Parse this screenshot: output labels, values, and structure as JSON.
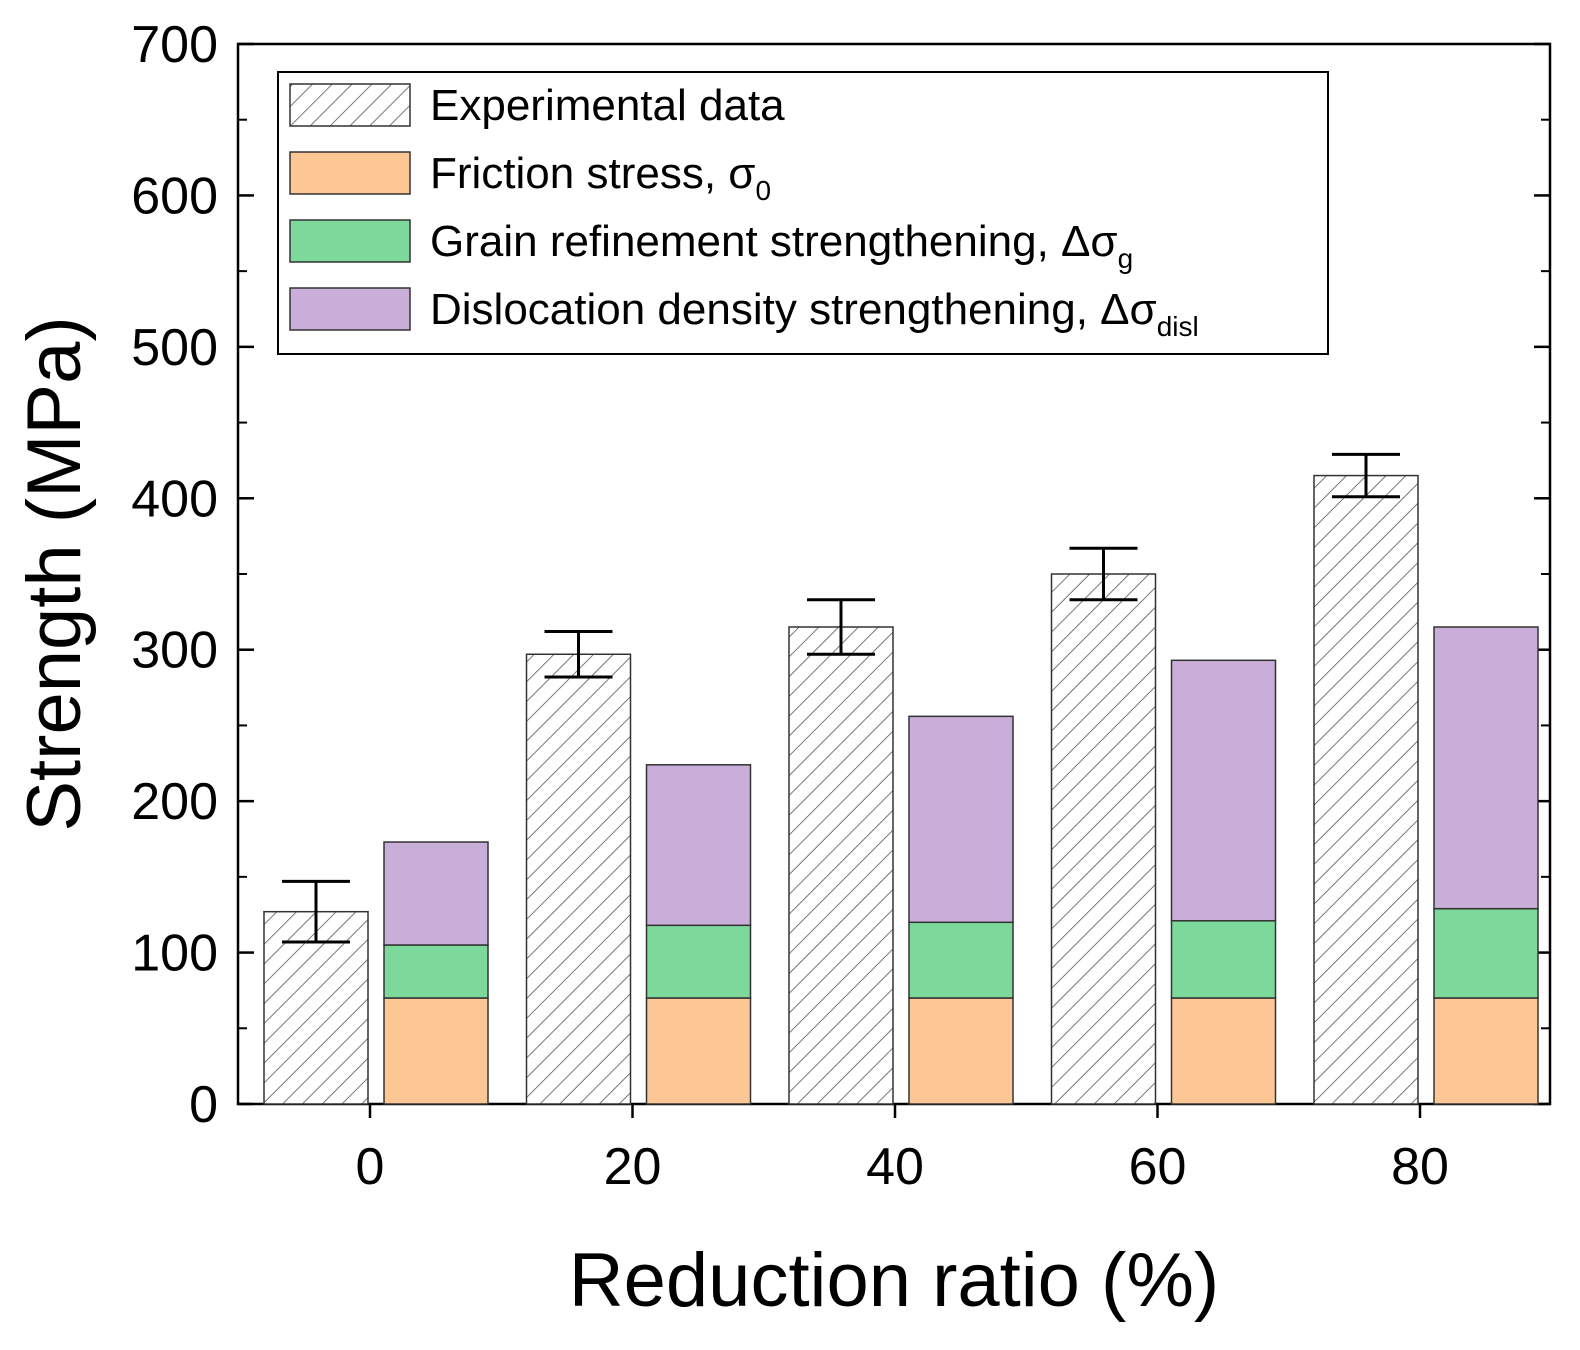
{
  "chart_data": {
    "type": "bar",
    "title": "",
    "xlabel": "Reduction ratio (%)",
    "ylabel": "Strength (MPa)",
    "ylim": [
      0,
      700
    ],
    "yticks": [
      0,
      100,
      200,
      300,
      400,
      500,
      600,
      700
    ],
    "categories": [
      "0",
      "20",
      "40",
      "60",
      "80"
    ],
    "experimental": {
      "name": "Experimental data",
      "values": [
        127,
        297,
        315,
        350,
        415
      ],
      "error": [
        20,
        15,
        18,
        17,
        14
      ]
    },
    "stacked_series": [
      {
        "name": "Friction stress, σ",
        "subscript": "0",
        "color": "#FDC795",
        "values": [
          70,
          70,
          70,
          70,
          70
        ]
      },
      {
        "name": "Grain refinement strengthening, Δσ",
        "subscript": "g",
        "color": "#7DD89B",
        "values": [
          35,
          48,
          50,
          51,
          59
        ]
      },
      {
        "name": "Dislocation density strengthening, Δσ",
        "subscript": "disl",
        "color": "#C8AED9",
        "values": [
          68,
          106,
          136,
          172,
          186
        ]
      }
    ],
    "legend_position": "top-left"
  }
}
